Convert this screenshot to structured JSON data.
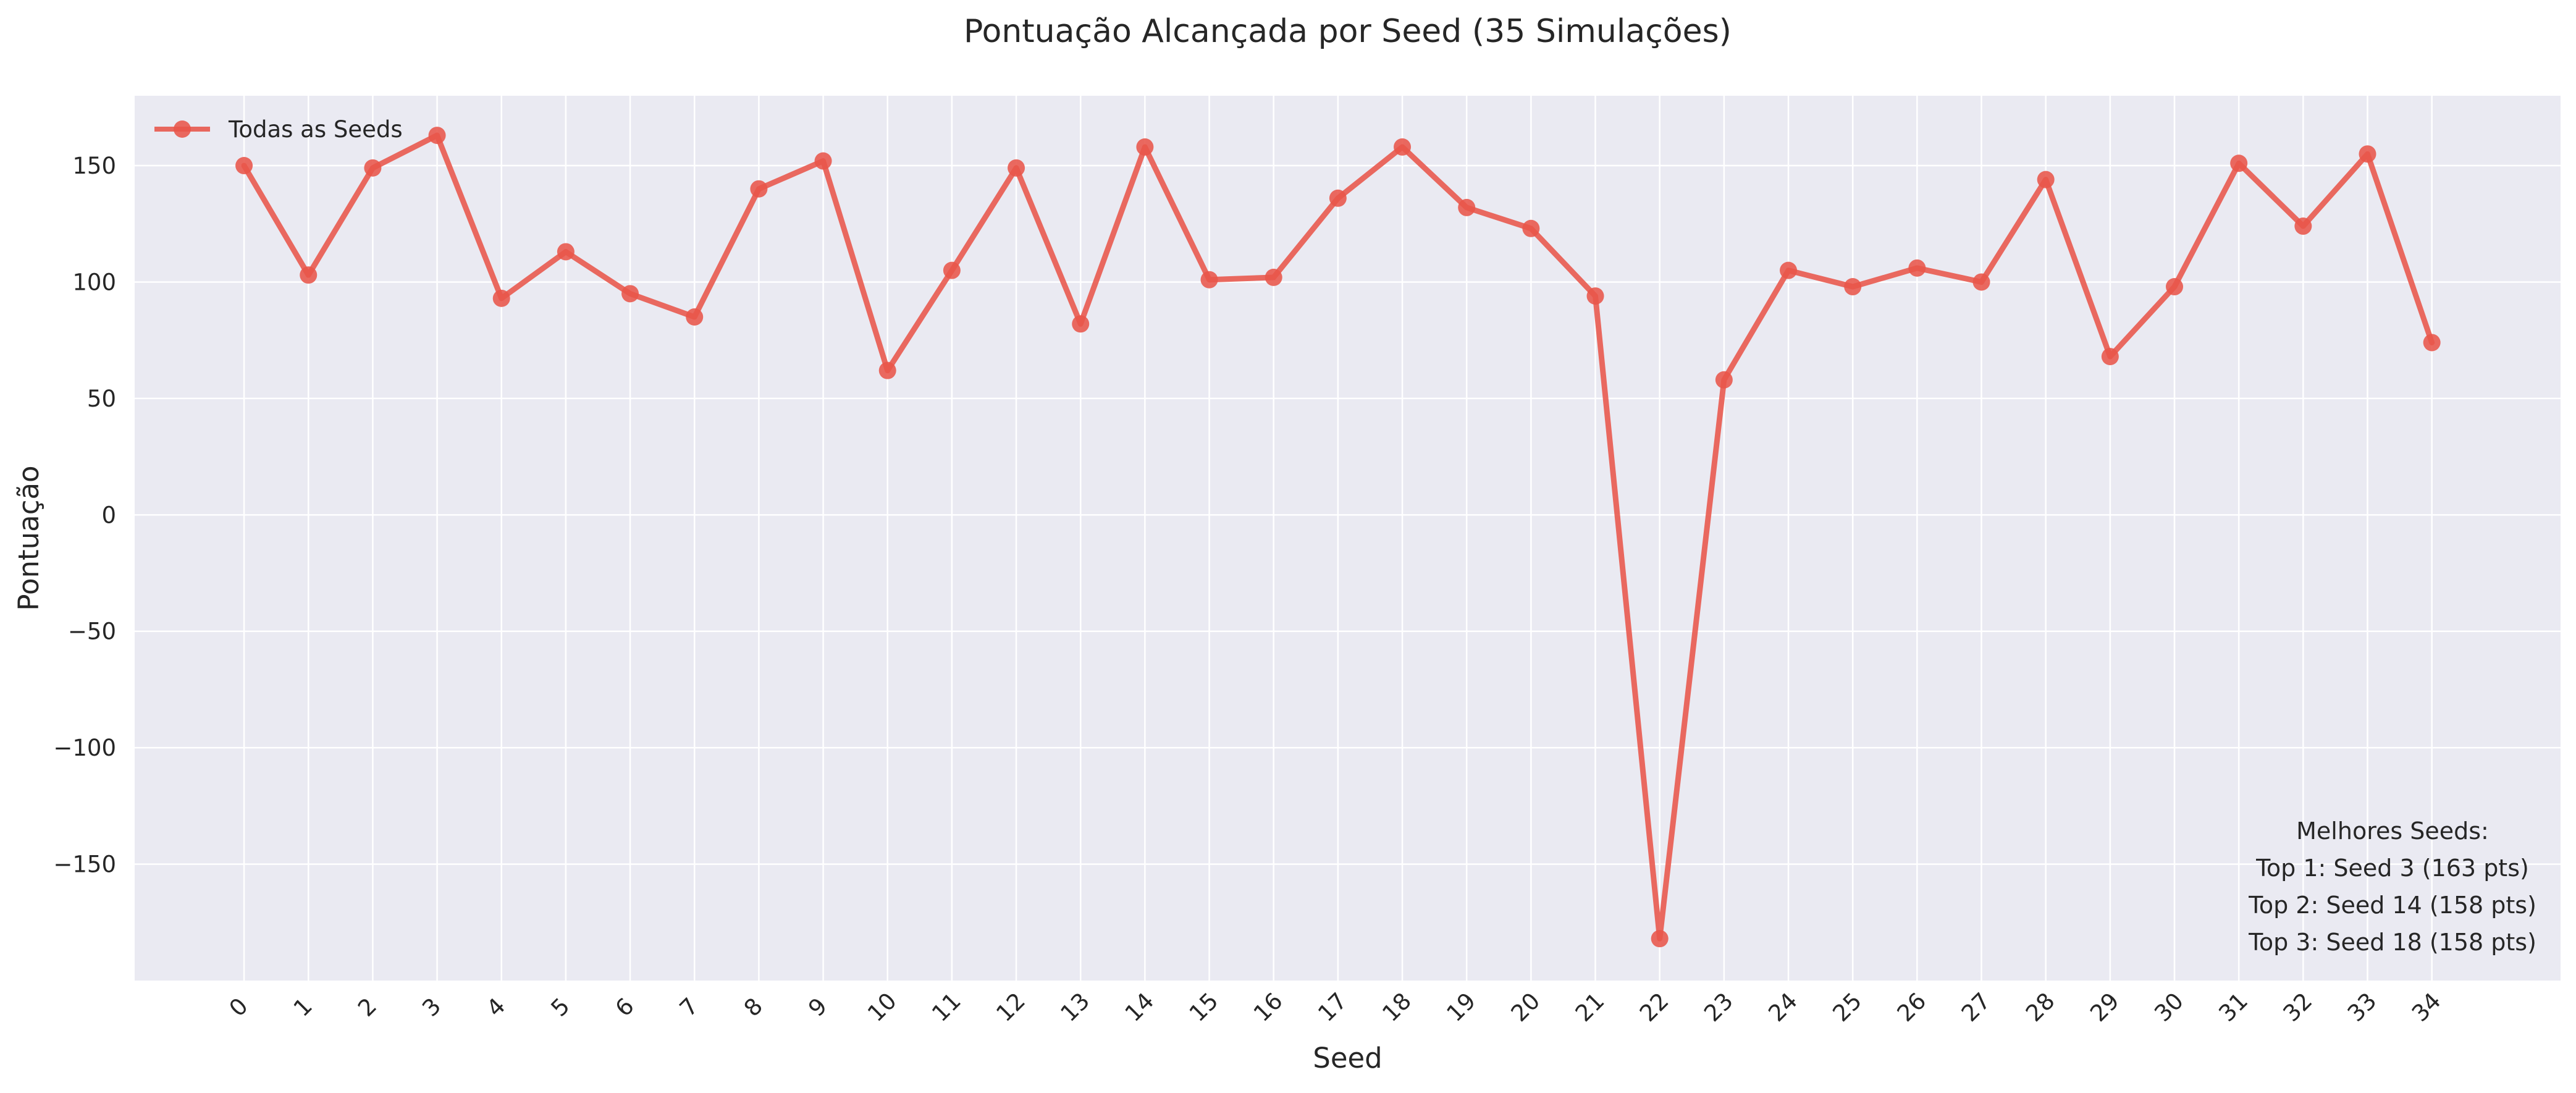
{
  "chart_data": {
    "type": "line",
    "title": "Pontuação Alcançada por Seed (35 Simulações)",
    "xlabel": "Seed",
    "ylabel": "Pontuação",
    "x": [
      0,
      1,
      2,
      3,
      4,
      5,
      6,
      7,
      8,
      9,
      10,
      11,
      12,
      13,
      14,
      15,
      16,
      17,
      18,
      19,
      20,
      21,
      22,
      23,
      24,
      25,
      26,
      27,
      28,
      29,
      30,
      31,
      32,
      33,
      34
    ],
    "x_tick_labels": [
      "0",
      "1",
      "2",
      "3",
      "4",
      "5",
      "6",
      "7",
      "8",
      "9",
      "10",
      "11",
      "12",
      "13",
      "14",
      "15",
      "16",
      "17",
      "18",
      "19",
      "20",
      "21",
      "22",
      "23",
      "24",
      "25",
      "26",
      "27",
      "28",
      "29",
      "30",
      "31",
      "32",
      "33",
      "34"
    ],
    "series": [
      {
        "name": "Todas as Seeds",
        "color": "#e8554a",
        "values": [
          150,
          103,
          149,
          163,
          93,
          113,
          95,
          85,
          140,
          152,
          62,
          105,
          149,
          82,
          158,
          101,
          102,
          136,
          158,
          132,
          123,
          94,
          -182,
          58,
          105,
          98,
          106,
          100,
          144,
          68,
          98,
          151,
          124,
          155,
          74
        ]
      }
    ],
    "y_ticks": [
      150,
      100,
      50,
      0,
      -50,
      -100,
      -150
    ],
    "y_tick_labels": [
      "150",
      "100",
      "50",
      "0",
      "−50",
      "−100",
      "−150"
    ],
    "ylim": [
      -200,
      180
    ],
    "xlim": [
      -1.7,
      36
    ],
    "grid": true,
    "legend_position": "top-left",
    "annotation": {
      "position": "bottom-right",
      "lines": [
        "Melhores Seeds:",
        "Top 1: Seed 3 (163 pts)",
        "Top 2: Seed 14 (158 pts)",
        "Top 3: Seed 18 (158 pts)"
      ]
    }
  }
}
